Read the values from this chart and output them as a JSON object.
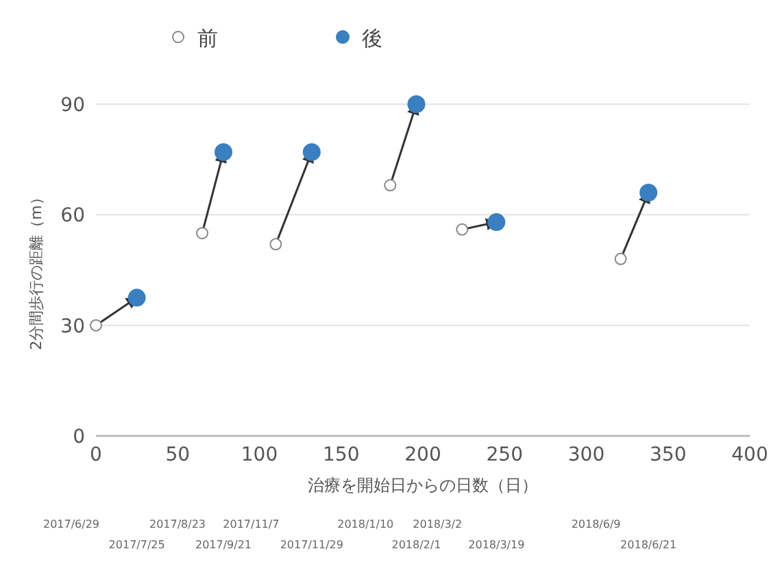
{
  "chart_data": {
    "type": "scatter",
    "xlabel": "治療を開始日からの日数（日）",
    "ylabel": "2分間歩行の距離（m）",
    "series": [
      {
        "name": "前",
        "color": "#ffffff",
        "x": [
          0,
          65,
          110,
          180,
          224,
          321
        ],
        "values": [
          30,
          55,
          52,
          68,
          56,
          48
        ]
      },
      {
        "name": "後",
        "color": "#3a7fc0",
        "x": [
          25,
          78,
          132,
          196,
          245,
          338
        ],
        "values": [
          37.5,
          77,
          77,
          90,
          58,
          66
        ]
      }
    ],
    "annotations": [
      "2017/6/29",
      "2017/7/25",
      "2017/8/23",
      "2017/9/21",
      "2017/11/7",
      "2017/11/29",
      "2018/1/10",
      "2018/2/1",
      "2018/3/2",
      "2018/3/19",
      "2018/6/9",
      "2018/6/21"
    ],
    "xlim": [
      0,
      400
    ],
    "xticks": [
      0,
      50,
      100,
      150,
      200,
      250,
      300,
      350,
      400
    ],
    "ylim": [
      0,
      90
    ],
    "yticks": [
      0,
      30,
      60,
      90
    ],
    "grid": "y",
    "legend": "top",
    "marker": "circle"
  }
}
